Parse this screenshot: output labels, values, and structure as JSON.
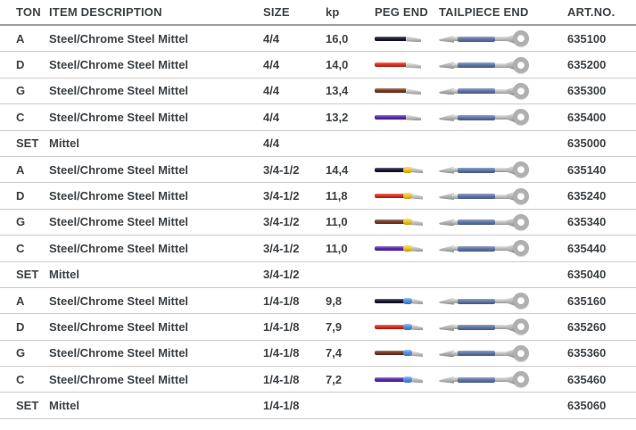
{
  "table": {
    "headers": {
      "ton": "TON",
      "item": "ITEM DESCRIPTION",
      "size": "SIZE",
      "kp": "kp",
      "peg_end": "PEG END",
      "tailpiece_end": "TAILPIECE END",
      "art_no": "ART.NO."
    },
    "colors": {
      "tailpiece_winding": "#5f77a8",
      "peg_a": "#1b1b36",
      "peg_d": "#e0301e",
      "peg_g": "#7c3b27",
      "peg_c": "#5a2eb1",
      "band_3_4_1_2": "#f2c71d",
      "band_1_4_1_8": "#4f93e8"
    },
    "rows": [
      {
        "ton": "A",
        "item": "Steel/Chrome Steel Mittel",
        "size": "4/4",
        "kp": "16,0",
        "art_no": "635100",
        "has_strings": true,
        "peg_color": "#1b1b36",
        "band_color": ""
      },
      {
        "ton": "D",
        "item": "Steel/Chrome Steel Mittel",
        "size": "4/4",
        "kp": "14,0",
        "art_no": "635200",
        "has_strings": true,
        "peg_color": "#e0301e",
        "band_color": ""
      },
      {
        "ton": "G",
        "item": "Steel/Chrome Steel Mittel",
        "size": "4/4",
        "kp": "13,4",
        "art_no": "635300",
        "has_strings": true,
        "peg_color": "#7c3b27",
        "band_color": ""
      },
      {
        "ton": "C",
        "item": "Steel/Chrome Steel Mittel",
        "size": "4/4",
        "kp": "13,2",
        "art_no": "635400",
        "has_strings": true,
        "peg_color": "#5a2eb1",
        "band_color": ""
      },
      {
        "ton": "SET",
        "item": "Mittel",
        "size": "4/4",
        "kp": "",
        "art_no": "635000",
        "has_strings": false,
        "peg_color": "",
        "band_color": ""
      },
      {
        "ton": "A",
        "item": "Steel/Chrome Steel Mittel",
        "size": "3/4-1/2",
        "kp": "14,4",
        "art_no": "635140",
        "has_strings": true,
        "peg_color": "#1b1b36",
        "band_color": "#f2c71d"
      },
      {
        "ton": "D",
        "item": "Steel/Chrome Steel Mittel",
        "size": "3/4-1/2",
        "kp": "11,8",
        "art_no": "635240",
        "has_strings": true,
        "peg_color": "#e0301e",
        "band_color": "#f2c71d"
      },
      {
        "ton": "G",
        "item": "Steel/Chrome Steel Mittel",
        "size": "3/4-1/2",
        "kp": "11,0",
        "art_no": "635340",
        "has_strings": true,
        "peg_color": "#7c3b27",
        "band_color": "#f2c71d"
      },
      {
        "ton": "C",
        "item": "Steel/Chrome Steel Mittel",
        "size": "3/4-1/2",
        "kp": "11,0",
        "art_no": "635440",
        "has_strings": true,
        "peg_color": "#5a2eb1",
        "band_color": "#f2c71d"
      },
      {
        "ton": "SET",
        "item": "Mittel",
        "size": "3/4-1/2",
        "kp": "",
        "art_no": "635040",
        "has_strings": false,
        "peg_color": "",
        "band_color": ""
      },
      {
        "ton": "A",
        "item": "Steel/Chrome Steel Mittel",
        "size": "1/4-1/8",
        "kp": "9,8",
        "art_no": "635160",
        "has_strings": true,
        "peg_color": "#1b1b36",
        "band_color": "#4f93e8"
      },
      {
        "ton": "D",
        "item": "Steel/Chrome Steel Mittel",
        "size": "1/4-1/8",
        "kp": "7,9",
        "art_no": "635260",
        "has_strings": true,
        "peg_color": "#e0301e",
        "band_color": "#4f93e8"
      },
      {
        "ton": "G",
        "item": "Steel/Chrome Steel Mittel",
        "size": "1/4-1/8",
        "kp": "7,4",
        "art_no": "635360",
        "has_strings": true,
        "peg_color": "#7c3b27",
        "band_color": "#4f93e8"
      },
      {
        "ton": "C",
        "item": "Steel/Chrome Steel Mittel",
        "size": "1/4-1/8",
        "kp": "7,2",
        "art_no": "635460",
        "has_strings": true,
        "peg_color": "#5a2eb1",
        "band_color": "#4f93e8"
      },
      {
        "ton": "SET",
        "item": "Mittel",
        "size": "1/4-1/8",
        "kp": "",
        "art_no": "635060",
        "has_strings": false,
        "peg_color": "",
        "band_color": ""
      }
    ]
  }
}
